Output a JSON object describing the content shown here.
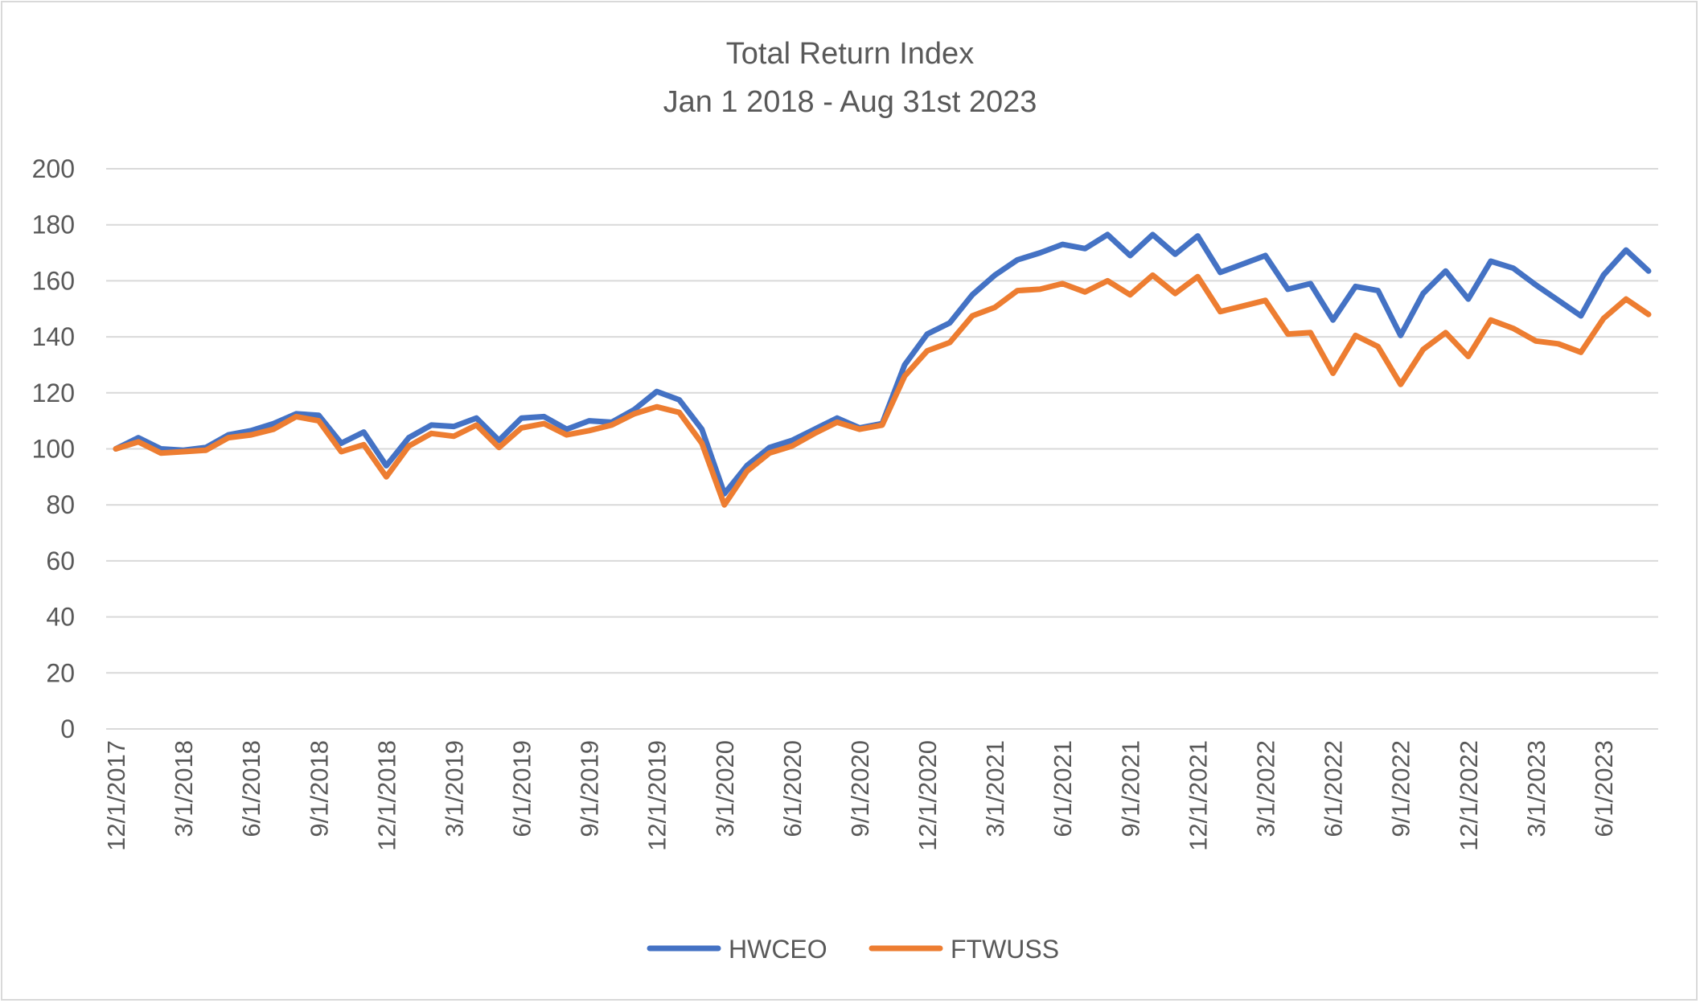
{
  "chart_data": {
    "type": "line",
    "title": "Total Return Index",
    "subtitle": "Jan 1 2018 - Aug 31st 2023",
    "xlabel": "",
    "ylabel": "",
    "ylim": [
      0,
      200
    ],
    "yticks": [
      "0",
      "20",
      "40",
      "60",
      "80",
      "100",
      "120",
      "140",
      "160",
      "180",
      "200"
    ],
    "grid": true,
    "legend_position": "bottom",
    "x": [
      "12/1/2017",
      "1/1/2018",
      "2/1/2018",
      "3/1/2018",
      "4/1/2018",
      "5/1/2018",
      "6/1/2018",
      "7/1/2018",
      "8/1/2018",
      "9/1/2018",
      "10/1/2018",
      "11/1/2018",
      "12/1/2018",
      "1/1/2019",
      "2/1/2019",
      "3/1/2019",
      "4/1/2019",
      "5/1/2019",
      "6/1/2019",
      "7/1/2019",
      "8/1/2019",
      "9/1/2019",
      "10/1/2019",
      "11/1/2019",
      "12/1/2019",
      "1/1/2020",
      "2/1/2020",
      "3/1/2020",
      "4/1/2020",
      "5/1/2020",
      "6/1/2020",
      "7/1/2020",
      "8/1/2020",
      "9/1/2020",
      "10/1/2020",
      "11/1/2020",
      "12/1/2020",
      "1/1/2021",
      "2/1/2021",
      "3/1/2021",
      "4/1/2021",
      "5/1/2021",
      "6/1/2021",
      "7/1/2021",
      "8/1/2021",
      "9/1/2021",
      "10/1/2021",
      "11/1/2021",
      "12/1/2021",
      "1/1/2022",
      "2/1/2022",
      "3/1/2022",
      "4/1/2022",
      "5/1/2022",
      "6/1/2022",
      "7/1/2022",
      "8/1/2022",
      "9/1/2022",
      "10/1/2022",
      "11/1/2022",
      "12/1/2022",
      "1/1/2023",
      "2/1/2023",
      "3/1/2023",
      "4/1/2023",
      "5/1/2023",
      "6/1/2023",
      "7/1/2023",
      "8/1/2023"
    ],
    "xtick_labels": [
      "12/1/2017",
      "3/1/2018",
      "6/1/2018",
      "9/1/2018",
      "12/1/2018",
      "3/1/2019",
      "6/1/2019",
      "9/1/2019",
      "12/1/2019",
      "3/1/2020",
      "6/1/2020",
      "9/1/2020",
      "12/1/2020",
      "3/1/2021",
      "6/1/2021",
      "9/1/2021",
      "12/1/2021",
      "3/1/2022",
      "6/1/2022",
      "9/1/2022",
      "12/1/2022",
      "3/1/2023",
      "6/1/2023"
    ],
    "series": [
      {
        "name": "HWCEO",
        "color": "#4472C4",
        "values": [
          100,
          104,
          100,
          99.5,
          100.5,
          105,
          106.5,
          109,
          112.5,
          112,
          102,
          106,
          94,
          104,
          108.5,
          108,
          111,
          103,
          111,
          111.5,
          107,
          110,
          109.5,
          114,
          120.5,
          117.5,
          107,
          84,
          94,
          100.5,
          103,
          107,
          111,
          107.5,
          109,
          130,
          141,
          145,
          155,
          162,
          167.5,
          170,
          173,
          171.5,
          176.5,
          169,
          176.5,
          169.5,
          176,
          163,
          166,
          169,
          157,
          159,
          146,
          158,
          156.5,
          140.5,
          155.5,
          163.5,
          153.5,
          167,
          164.5,
          158.5,
          153,
          147.5,
          162,
          171,
          163.5
        ]
      },
      {
        "name": "FTWUSS",
        "color": "#ED7D31",
        "values": [
          100,
          102.5,
          98.5,
          99,
          99.5,
          104,
          105,
          107,
          111.5,
          110,
          99,
          101.5,
          90,
          101,
          105.5,
          104.5,
          108.5,
          100.5,
          107.5,
          109,
          105,
          106.5,
          108.5,
          112.5,
          115,
          113,
          102,
          80,
          92,
          98.5,
          101,
          105.5,
          109.5,
          107,
          108.5,
          126,
          135,
          138,
          147.5,
          150.5,
          156.5,
          157,
          159,
          156,
          160,
          155,
          162,
          155.5,
          161.5,
          149,
          151,
          153,
          141,
          141.5,
          127,
          140.5,
          136.5,
          123,
          135.5,
          141.5,
          133,
          146,
          143,
          138.5,
          137.5,
          134.5,
          146.5,
          153.5,
          148
        ]
      }
    ]
  }
}
